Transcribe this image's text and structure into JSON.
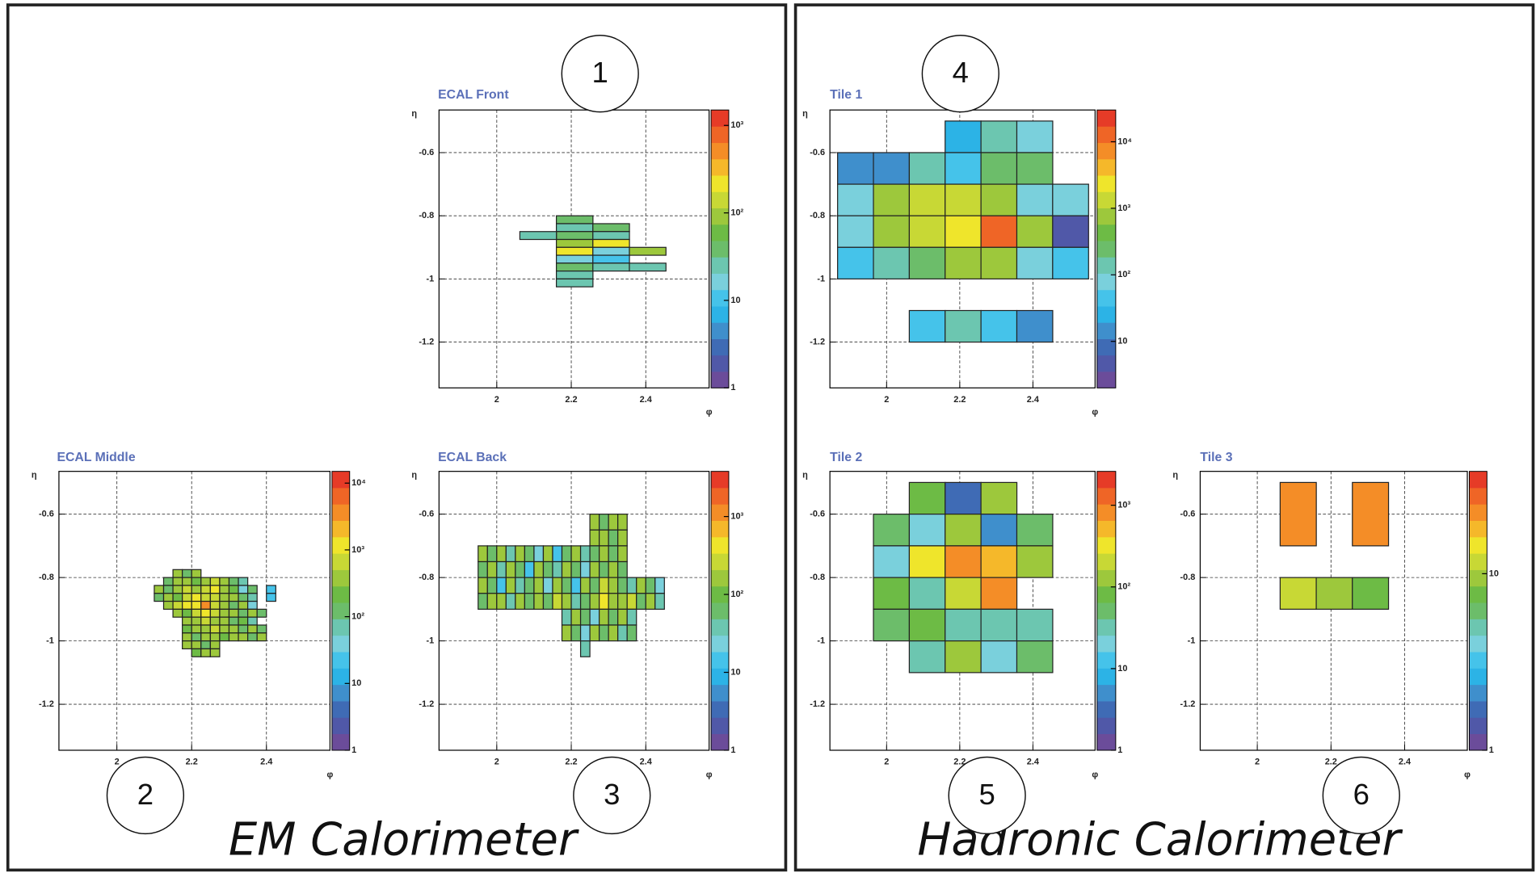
{
  "sections": [
    "EM Calorimeter",
    "Hadronic Calorimeter"
  ],
  "palette": [
    "#6b4c9a",
    "#5058a8",
    "#3f6bb5",
    "#3f8fcc",
    "#2cb3e6",
    "#45c3ea",
    "#7ad0dc",
    "#6cc6b0",
    "#6cbd6a",
    "#6dbb45",
    "#9dc83c",
    "#c8d835",
    "#efe52b",
    "#f5b82a",
    "#f48d27",
    "#ef6526",
    "#e63b27"
  ],
  "chart_data": [
    {
      "type": "heatmap",
      "title": "ECAL Front",
      "annotation": "1",
      "xlabel": "φ",
      "ylabel": "η",
      "xlim": [
        1.845,
        2.57
      ],
      "ylim": [
        -1.345,
        -0.465
      ],
      "xticks": [
        2,
        2.2,
        2.4
      ],
      "yticks": [
        -0.6,
        -0.8,
        -1,
        -1.2
      ],
      "grid": true,
      "zlog": true,
      "zlim": [
        1,
        1500
      ],
      "zticks": [
        1,
        10,
        {
          "value": 100,
          "label": "10²"
        },
        {
          "value": 1000,
          "label": "10³"
        }
      ],
      "dx": 0.0982,
      "dy": 0.025,
      "x": [
        2.16,
        2.16,
        2.16,
        2.16,
        2.16,
        2.16,
        2.16,
        2.16,
        2.16,
        2.258,
        2.258,
        2.258,
        2.258,
        2.258,
        2.258,
        2.062,
        2.356,
        2.356
      ],
      "y": [
        -0.825,
        -0.85,
        -0.875,
        -0.9,
        -0.925,
        -0.95,
        -0.975,
        -1,
        -1.025,
        -0.85,
        -0.875,
        -0.9,
        -0.925,
        -0.95,
        -0.975,
        -0.875,
        -0.925,
        -0.975
      ],
      "values": [
        39,
        27,
        39,
        80,
        240,
        19,
        39,
        27,
        27,
        39,
        27,
        240,
        19,
        9,
        27,
        27,
        80,
        27
      ]
    },
    {
      "type": "heatmap",
      "title": "ECAL Middle",
      "annotation": "2",
      "xlabel": "φ",
      "ylabel": "η",
      "xlim": [
        1.845,
        2.57
      ],
      "ylim": [
        -1.345,
        -0.465
      ],
      "xticks": [
        2,
        2.2,
        2.4
      ],
      "yticks": [
        -0.6,
        -0.8,
        -1,
        -1.2
      ],
      "grid": true,
      "zlog": true,
      "zlim": [
        1,
        15000
      ],
      "zticks": [
        1,
        10,
        {
          "value": 100,
          "label": "10²"
        },
        {
          "value": 1000,
          "label": "10³"
        },
        {
          "value": 10000,
          "label": "10⁴"
        }
      ],
      "dx": 0.025,
      "dy": 0.025,
      "x": [
        2.15,
        2.175,
        2.2,
        2.125,
        2.15,
        2.175,
        2.2,
        2.225,
        2.25,
        2.275,
        2.3,
        2.325,
        2.1,
        2.125,
        2.15,
        2.175,
        2.2,
        2.225,
        2.25,
        2.275,
        2.3,
        2.325,
        2.35,
        2.4,
        2.1,
        2.125,
        2.15,
        2.175,
        2.2,
        2.225,
        2.25,
        2.275,
        2.3,
        2.325,
        2.35,
        2.4,
        2.125,
        2.15,
        2.175,
        2.2,
        2.225,
        2.25,
        2.275,
        2.3,
        2.325,
        2.35,
        2.15,
        2.175,
        2.2,
        2.225,
        2.25,
        2.275,
        2.3,
        2.325,
        2.35,
        2.375,
        2.175,
        2.2,
        2.225,
        2.25,
        2.275,
        2.3,
        2.325,
        2.35,
        2.175,
        2.2,
        2.225,
        2.25,
        2.275,
        2.3,
        2.325,
        2.35,
        2.375,
        2.175,
        2.2,
        2.225,
        2.25,
        2.275,
        2.3,
        2.325,
        2.35,
        2.375,
        2.175,
        2.2,
        2.225,
        2.25,
        2.2,
        2.225,
        2.25
      ],
      "y": [
        -0.8,
        -0.8,
        -0.8,
        -0.825,
        -0.825,
        -0.825,
        -0.825,
        -0.825,
        -0.825,
        -0.825,
        -0.825,
        -0.825,
        -0.85,
        -0.85,
        -0.85,
        -0.85,
        -0.85,
        -0.85,
        -0.85,
        -0.85,
        -0.85,
        -0.85,
        -0.85,
        -0.85,
        -0.875,
        -0.875,
        -0.875,
        -0.875,
        -0.875,
        -0.875,
        -0.875,
        -0.875,
        -0.875,
        -0.875,
        -0.875,
        -0.875,
        -0.9,
        -0.9,
        -0.9,
        -0.9,
        -0.9,
        -0.9,
        -0.9,
        -0.9,
        -0.9,
        -0.9,
        -0.925,
        -0.925,
        -0.925,
        -0.925,
        -0.925,
        -0.925,
        -0.925,
        -0.925,
        -0.925,
        -0.925,
        -0.95,
        -0.95,
        -0.95,
        -0.95,
        -0.95,
        -0.95,
        -0.95,
        -0.95,
        -0.975,
        -0.975,
        -0.975,
        -0.975,
        -0.975,
        -0.975,
        -0.975,
        -0.975,
        -0.975,
        -1,
        -1,
        -1,
        -1,
        -1,
        -1,
        -1,
        -1,
        -1,
        -1.025,
        -1.025,
        -1.025,
        -1.025,
        -1.05,
        -1.05,
        -1.05
      ],
      "values": [
        330,
        120,
        330,
        120,
        330,
        330,
        250,
        330,
        700,
        330,
        120,
        77,
        330,
        120,
        330,
        700,
        330,
        700,
        1400,
        330,
        250,
        47,
        120,
        18,
        120,
        330,
        250,
        700,
        1400,
        700,
        700,
        330,
        330,
        120,
        77,
        18,
        330,
        700,
        1400,
        1400,
        3700,
        700,
        330,
        120,
        330,
        47,
        330,
        250,
        700,
        1400,
        700,
        330,
        330,
        120,
        330,
        120,
        330,
        330,
        700,
        330,
        330,
        120,
        250,
        77,
        250,
        330,
        330,
        700,
        330,
        330,
        120,
        330,
        120,
        330,
        120,
        330,
        330,
        250,
        330,
        330,
        120,
        330,
        330,
        330,
        120,
        330,
        250,
        330,
        330
      ]
    },
    {
      "type": "heatmap",
      "title": "ECAL Back",
      "annotation": "3",
      "xlabel": "φ",
      "ylabel": "η",
      "xlim": [
        1.845,
        2.57
      ],
      "ylim": [
        -1.345,
        -0.465
      ],
      "xticks": [
        2,
        2.2,
        2.4
      ],
      "yticks": [
        -0.6,
        -0.8,
        -1,
        -1.2
      ],
      "grid": true,
      "zlog": true,
      "zlim": [
        1,
        3800
      ],
      "zticks": [
        1,
        10,
        {
          "value": 100,
          "label": "10²"
        },
        {
          "value": 1000,
          "label": "10³"
        }
      ],
      "dx": 0.025,
      "dy": 0.05,
      "x": [
        2.25,
        2.275,
        2.3,
        2.325,
        2.25,
        2.275,
        2.3,
        2.325,
        1.95,
        1.975,
        2,
        2.025,
        2.05,
        2.075,
        2.1,
        2.125,
        2.15,
        2.175,
        2.2,
        2.225,
        2.25,
        2.275,
        2.3,
        2.325,
        1.95,
        1.975,
        2,
        2.025,
        2.05,
        2.075,
        2.1,
        2.125,
        2.15,
        2.175,
        2.2,
        2.225,
        2.25,
        2.275,
        2.3,
        2.325,
        1.95,
        1.975,
        2,
        2.025,
        2.05,
        2.075,
        2.1,
        2.125,
        2.15,
        2.175,
        2.2,
        2.225,
        2.25,
        2.275,
        2.3,
        2.325,
        2.35,
        2.375,
        2.4,
        2.425,
        1.95,
        1.975,
        2,
        2.025,
        2.05,
        2.075,
        2.1,
        2.125,
        2.15,
        2.175,
        2.2,
        2.225,
        2.25,
        2.275,
        2.3,
        2.325,
        2.35,
        2.375,
        2.4,
        2.425,
        2.175,
        2.2,
        2.225,
        2.25,
        2.275,
        2.3,
        2.325,
        2.35,
        2.175,
        2.2,
        2.225,
        2.25,
        2.275,
        2.3,
        2.325,
        2.35,
        2.225
      ],
      "y": [
        -0.65,
        -0.65,
        -0.65,
        -0.65,
        -0.7,
        -0.7,
        -0.7,
        -0.7,
        -0.75,
        -0.75,
        -0.75,
        -0.75,
        -0.75,
        -0.75,
        -0.75,
        -0.75,
        -0.75,
        -0.75,
        -0.75,
        -0.75,
        -0.75,
        -0.75,
        -0.75,
        -0.75,
        -0.8,
        -0.8,
        -0.8,
        -0.8,
        -0.8,
        -0.8,
        -0.8,
        -0.8,
        -0.8,
        -0.8,
        -0.8,
        -0.8,
        -0.8,
        -0.8,
        -0.8,
        -0.8,
        -0.85,
        -0.85,
        -0.85,
        -0.85,
        -0.85,
        -0.85,
        -0.85,
        -0.85,
        -0.85,
        -0.85,
        -0.85,
        -0.85,
        -0.85,
        -0.85,
        -0.85,
        -0.85,
        -0.85,
        -0.85,
        -0.85,
        -0.85,
        -0.9,
        -0.9,
        -0.9,
        -0.9,
        -0.9,
        -0.9,
        -0.9,
        -0.9,
        -0.9,
        -0.9,
        -0.9,
        -0.9,
        -0.9,
        -0.9,
        -0.9,
        -0.9,
        -0.9,
        -0.9,
        -0.9,
        -0.9,
        -0.95,
        -0.95,
        -0.95,
        -0.95,
        -0.95,
        -0.95,
        -0.95,
        -0.95,
        -1,
        -1,
        -1,
        -1,
        -1,
        -1,
        -1,
        -1,
        -1.05
      ],
      "values": [
        140,
        60,
        140,
        140,
        140,
        140,
        60,
        140,
        140,
        60,
        140,
        40,
        140,
        60,
        27,
        140,
        12,
        60,
        140,
        40,
        60,
        140,
        60,
        140,
        60,
        140,
        40,
        140,
        60,
        12,
        140,
        60,
        40,
        140,
        60,
        27,
        140,
        60,
        140,
        60,
        140,
        60,
        12,
        140,
        40,
        60,
        140,
        27,
        140,
        60,
        12,
        140,
        60,
        270,
        140,
        60,
        40,
        140,
        60,
        27,
        60,
        140,
        140,
        40,
        140,
        60,
        140,
        60,
        270,
        140,
        40,
        60,
        140,
        470,
        140,
        140,
        270,
        60,
        140,
        40,
        40,
        140,
        60,
        27,
        140,
        60,
        140,
        40,
        140,
        60,
        27,
        140,
        60,
        140,
        40,
        60,
        40
      ]
    },
    {
      "type": "heatmap",
      "title": "Tile 1",
      "annotation": "4",
      "xlabel": "φ",
      "ylabel": "η",
      "xlim": [
        1.845,
        2.57
      ],
      "ylim": [
        -1.345,
        -0.465
      ],
      "xticks": [
        2,
        2.2,
        2.4
      ],
      "yticks": [
        -0.6,
        -0.8,
        -1,
        -1.2
      ],
      "grid": true,
      "zlog": true,
      "zlim": [
        2,
        30000
      ],
      "zticks": [
        10,
        {
          "value": 100,
          "label": "10²"
        },
        {
          "value": 1000,
          "label": "10³"
        },
        {
          "value": 10000,
          "label": "10⁴"
        }
      ],
      "dx": 0.0982,
      "dy": 0.1,
      "x": [
        2.16,
        2.258,
        2.356,
        1.866,
        1.964,
        2.062,
        2.16,
        2.258,
        2.356,
        1.866,
        1.964,
        2.062,
        2.16,
        2.258,
        2.356,
        2.454,
        1.866,
        1.964,
        2.062,
        2.16,
        2.258,
        2.356,
        2.454,
        1.866,
        1.964,
        2.062,
        2.16,
        2.258,
        2.356,
        2.454,
        2.062,
        2.16,
        2.258,
        2.356
      ],
      "y": [
        -0.6,
        -0.6,
        -0.6,
        -0.7,
        -0.7,
        -0.7,
        -0.7,
        -0.7,
        -0.7,
        -0.8,
        -0.8,
        -0.8,
        -0.8,
        -0.8,
        -0.8,
        -0.8,
        -0.9,
        -0.9,
        -0.9,
        -0.9,
        -0.9,
        -0.9,
        -0.9,
        -1,
        -1,
        -1,
        -1,
        -1,
        -1,
        -1,
        -1.2,
        -1.2,
        -1.2,
        -1.2
      ],
      "values": [
        30,
        150,
        93,
        14,
        14,
        150,
        35,
        245,
        200,
        93,
        640,
        1400,
        1400,
        640,
        93,
        93,
        93,
        640,
        1200,
        2700,
        15000,
        640,
        6,
        35,
        150,
        245,
        640,
        640,
        93,
        35,
        35,
        150,
        35,
        14
      ]
    },
    {
      "type": "heatmap",
      "title": "Tile 2",
      "annotation": "5",
      "xlabel": "φ",
      "ylabel": "η",
      "xlim": [
        1.845,
        2.57
      ],
      "ylim": [
        -1.345,
        -0.465
      ],
      "xticks": [
        2,
        2.2,
        2.4
      ],
      "yticks": [
        -0.6,
        -0.8,
        -1,
        -1.2
      ],
      "grid": true,
      "zlog": true,
      "zlim": [
        1,
        2600
      ],
      "zticks": [
        1,
        10,
        {
          "value": 100,
          "label": "10²"
        },
        {
          "value": 1000,
          "label": "10³"
        }
      ],
      "dx": 0.0982,
      "dy": 0.1,
      "x": [
        2.062,
        2.16,
        2.258,
        1.964,
        2.062,
        2.16,
        2.258,
        2.356,
        1.964,
        2.062,
        2.16,
        2.258,
        2.356,
        1.964,
        2.062,
        2.16,
        2.258,
        1.964,
        2.062,
        2.16,
        2.258,
        2.356,
        2.062,
        2.16,
        2.258,
        2.356
      ],
      "y": [
        -0.6,
        -0.6,
        -0.6,
        -0.7,
        -0.7,
        -0.7,
        -0.7,
        -0.7,
        -0.8,
        -0.8,
        -0.8,
        -0.8,
        -0.8,
        -0.9,
        -0.9,
        -0.9,
        -0.9,
        -1,
        -1,
        -1,
        -1,
        -1,
        -1.1,
        -1.1,
        -1.1,
        -1.1
      ],
      "values": [
        75,
        4,
        111,
        50,
        23,
        111,
        5,
        50,
        23,
        330,
        930,
        530,
        111,
        75,
        34,
        210,
        900,
        50,
        75,
        34,
        34,
        34,
        34,
        111,
        23,
        50
      ]
    },
    {
      "type": "heatmap",
      "title": "Tile 3",
      "annotation": "6",
      "xlabel": "φ",
      "ylabel": "η",
      "xlim": [
        1.845,
        2.57
      ],
      "ylim": [
        -1.345,
        -0.465
      ],
      "xticks": [
        2,
        2.2,
        2.4
      ],
      "yticks": [
        -0.6,
        -0.8,
        -1,
        -1.2
      ],
      "grid": true,
      "zlog": true,
      "zlim": [
        1,
        38
      ],
      "zticks": [
        1,
        10
      ],
      "dx": 0.0982,
      "dy": [
        0.2,
        0.2,
        0.1,
        0.1,
        0.1
      ],
      "x": [
        2.062,
        2.258,
        2.062,
        2.16,
        2.258
      ],
      "y": [
        -0.7,
        -0.7,
        -0.9,
        -0.9,
        -0.9
      ],
      "values": [
        22,
        22,
        11,
        9,
        7
      ]
    }
  ]
}
